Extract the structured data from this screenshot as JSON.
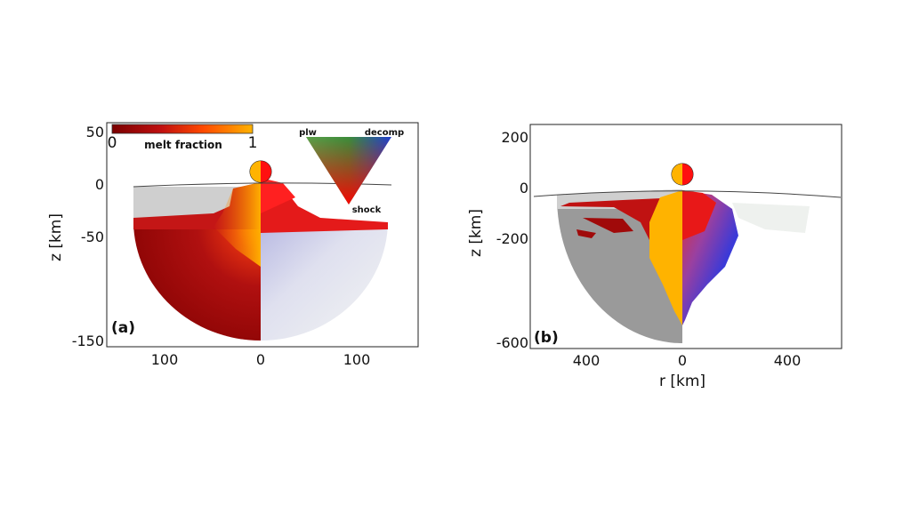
{
  "chart_data": [
    {
      "type": "heatmap",
      "panel_label": "(a)",
      "ylabel": "z [km]",
      "xlabel": "",
      "x_ticks": [
        "100",
        "0",
        "100"
      ],
      "y_ticks": [
        "50",
        "0",
        "-50",
        "-150"
      ],
      "xlim": [
        -155,
        155
      ],
      "ylim": [
        -155,
        60
      ],
      "colorbar": {
        "title": "melt fraction",
        "min_label": "0",
        "max_label": "1",
        "colors": [
          "#7a0000",
          "#d01818",
          "#ff5a00",
          "#ffb300"
        ]
      },
      "ternary_legend": {
        "labels": [
          "plw",
          "decomp",
          "shock"
        ]
      },
      "grid": false
    },
    {
      "type": "heatmap",
      "panel_label": "(b)",
      "ylabel": "z [km]",
      "xlabel": "r [km]",
      "x_ticks": [
        "400",
        "0",
        "400"
      ],
      "y_ticks": [
        "200",
        "0",
        "-200",
        "-600"
      ],
      "xlim": [
        -620,
        620
      ],
      "ylim": [
        -620,
        260
      ],
      "grid": false
    }
  ]
}
